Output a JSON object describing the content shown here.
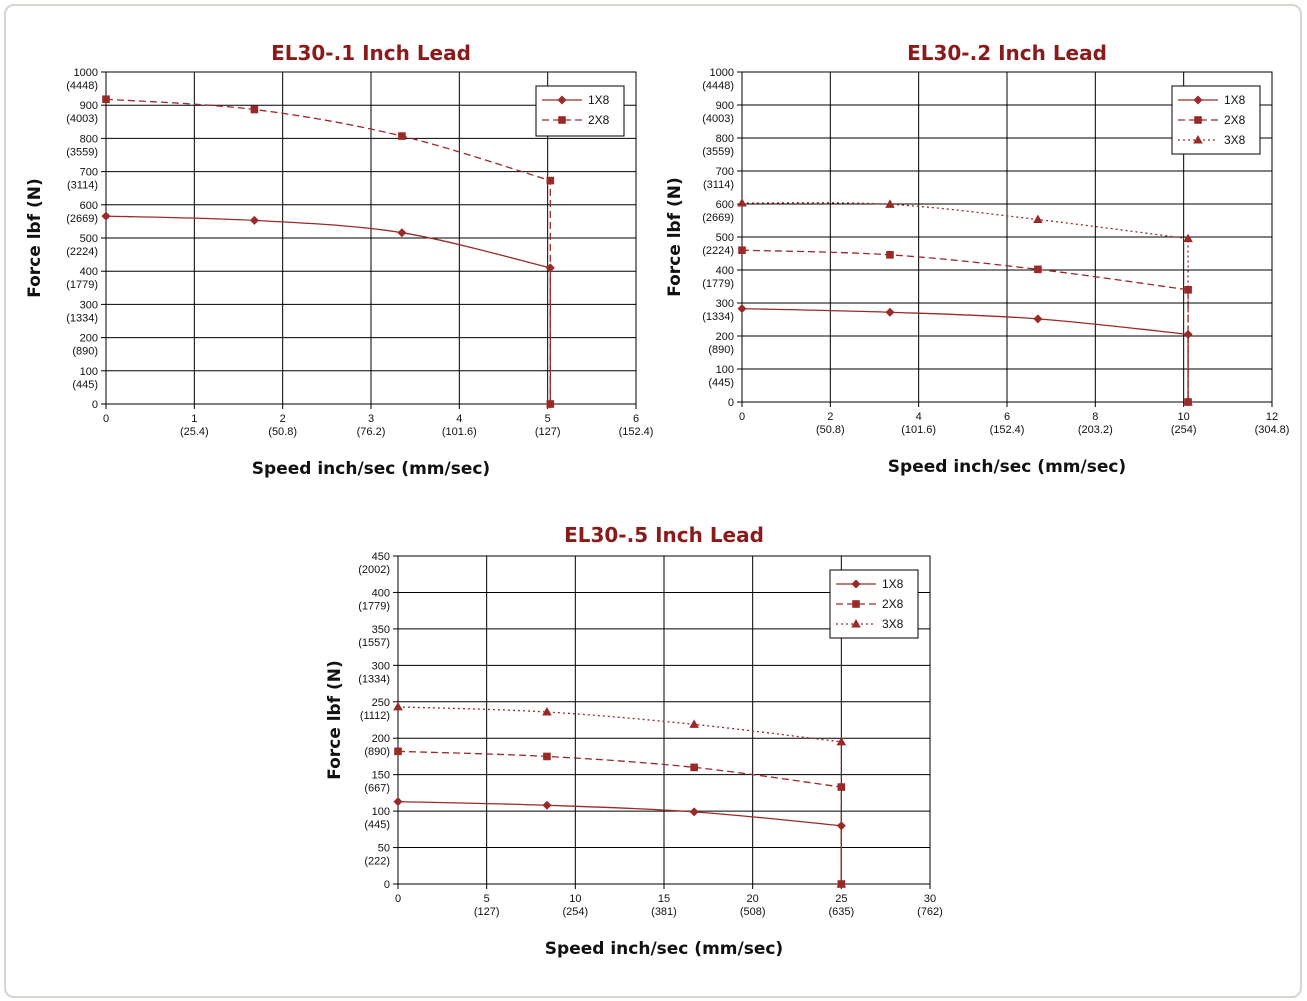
{
  "colors": {
    "series": "#9a2a28",
    "title": "#8b1a1a",
    "grid": "#000000",
    "frame": "#d8d4ce"
  },
  "chart_data": [
    {
      "type": "line",
      "title": "EL30-.1 Inch Lead",
      "xlabel": "Speed inch/sec (mm/sec)",
      "ylabel": "Force lbf (N)",
      "xlim": [
        0,
        6
      ],
      "ylim": [
        0,
        1000
      ],
      "x_ticks": [
        {
          "value": 0,
          "label": "0",
          "sub": ""
        },
        {
          "value": 1,
          "label": "1",
          "sub": "(25.4)"
        },
        {
          "value": 2,
          "label": "2",
          "sub": "(50.8)"
        },
        {
          "value": 3,
          "label": "3",
          "sub": "(76.2)"
        },
        {
          "value": 4,
          "label": "4",
          "sub": "(101.6)"
        },
        {
          "value": 5,
          "label": "5",
          "sub": "(127)"
        },
        {
          "value": 6,
          "label": "6",
          "sub": "(152.4)"
        }
      ],
      "y_ticks": [
        {
          "value": 0,
          "label": "0",
          "sub": ""
        },
        {
          "value": 100,
          "label": "100",
          "sub": "(445)"
        },
        {
          "value": 200,
          "label": "200",
          "sub": "(890)"
        },
        {
          "value": 300,
          "label": "300",
          "sub": "(1334)"
        },
        {
          "value": 400,
          "label": "400",
          "sub": "(1779)"
        },
        {
          "value": 500,
          "label": "500",
          "sub": "(2224)"
        },
        {
          "value": 600,
          "label": "600",
          "sub": "(2669)"
        },
        {
          "value": 700,
          "label": "700",
          "sub": "(3114)"
        },
        {
          "value": 800,
          "label": "800",
          "sub": "(3559)"
        },
        {
          "value": 900,
          "label": "900",
          "sub": "(4003)"
        },
        {
          "value": 1000,
          "label": "1000",
          "sub": "(4448)"
        }
      ],
      "legend": "top-right",
      "grid": true,
      "series": [
        {
          "name": "1X8",
          "marker": "diamond",
          "dash": "solid",
          "points": [
            [
              0,
              566
            ],
            [
              1.68,
              553
            ],
            [
              3.35,
              516
            ],
            [
              5.03,
              410
            ],
            [
              5.03,
              0
            ]
          ]
        },
        {
          "name": "2X8",
          "marker": "square",
          "dash": "dashed",
          "points": [
            [
              0,
              918
            ],
            [
              1.68,
              887
            ],
            [
              3.35,
              807
            ],
            [
              5.03,
              673
            ],
            [
              5.03,
              0
            ]
          ]
        }
      ]
    },
    {
      "type": "line",
      "title": "EL30-.2 Inch Lead",
      "xlabel": "Speed inch/sec (mm/sec)",
      "ylabel": "Force lbf (N)",
      "xlim": [
        0,
        12
      ],
      "ylim": [
        0,
        1000
      ],
      "x_ticks": [
        {
          "value": 0,
          "label": "0",
          "sub": ""
        },
        {
          "value": 2,
          "label": "2",
          "sub": "(50.8)"
        },
        {
          "value": 4,
          "label": "4",
          "sub": "(101.6)"
        },
        {
          "value": 6,
          "label": "6",
          "sub": "(152.4)"
        },
        {
          "value": 8,
          "label": "8",
          "sub": "(203.2)"
        },
        {
          "value": 10,
          "label": "10",
          "sub": "(254)"
        },
        {
          "value": 12,
          "label": "12",
          "sub": "(304.8)"
        }
      ],
      "y_ticks": [
        {
          "value": 0,
          "label": "0",
          "sub": ""
        },
        {
          "value": 100,
          "label": "100",
          "sub": "(445)"
        },
        {
          "value": 200,
          "label": "200",
          "sub": "(890)"
        },
        {
          "value": 300,
          "label": "300",
          "sub": "(1334)"
        },
        {
          "value": 400,
          "label": "400",
          "sub": "(1779)"
        },
        {
          "value": 500,
          "label": "500",
          "sub": "(2224)"
        },
        {
          "value": 600,
          "label": "600",
          "sub": "(2669)"
        },
        {
          "value": 700,
          "label": "700",
          "sub": "(3114)"
        },
        {
          "value": 800,
          "label": "800",
          "sub": "(3559)"
        },
        {
          "value": 900,
          "label": "900",
          "sub": "(4003)"
        },
        {
          "value": 1000,
          "label": "1000",
          "sub": "(4448)"
        }
      ],
      "legend": "top-right",
      "grid": true,
      "series": [
        {
          "name": "1X8",
          "marker": "diamond",
          "dash": "solid",
          "points": [
            [
              0,
              283
            ],
            [
              3.35,
              272
            ],
            [
              6.7,
              252
            ],
            [
              10.1,
              205
            ],
            [
              10.1,
              0
            ]
          ]
        },
        {
          "name": "2X8",
          "marker": "square",
          "dash": "dashed",
          "points": [
            [
              0,
              460
            ],
            [
              3.35,
              446
            ],
            [
              6.7,
              402
            ],
            [
              10.1,
              340
            ],
            [
              10.1,
              0
            ]
          ]
        },
        {
          "name": "3X8",
          "marker": "triangle",
          "dash": "dotted",
          "points": [
            [
              0,
              603
            ],
            [
              3.35,
              599
            ],
            [
              6.7,
              553
            ],
            [
              10.1,
              495
            ],
            [
              10.1,
              0
            ]
          ]
        }
      ]
    },
    {
      "type": "line",
      "title": "EL30-.5 Inch Lead",
      "xlabel": "Speed inch/sec (mm/sec)",
      "ylabel": "Force lbf (N)",
      "xlim": [
        0,
        30
      ],
      "ylim": [
        0,
        450
      ],
      "x_ticks": [
        {
          "value": 0,
          "label": "0",
          "sub": ""
        },
        {
          "value": 5,
          "label": "5",
          "sub": "(127)"
        },
        {
          "value": 10,
          "label": "10",
          "sub": "(254)"
        },
        {
          "value": 15,
          "label": "15",
          "sub": "(381)"
        },
        {
          "value": 20,
          "label": "20",
          "sub": "(508)"
        },
        {
          "value": 25,
          "label": "25",
          "sub": "(635)"
        },
        {
          "value": 30,
          "label": "30",
          "sub": "(762)"
        }
      ],
      "y_ticks": [
        {
          "value": 0,
          "label": "0",
          "sub": ""
        },
        {
          "value": 50,
          "label": "50",
          "sub": "(222)"
        },
        {
          "value": 100,
          "label": "100",
          "sub": "(445)"
        },
        {
          "value": 150,
          "label": "150",
          "sub": "(667)"
        },
        {
          "value": 200,
          "label": "200",
          "sub": "(890)"
        },
        {
          "value": 250,
          "label": "250",
          "sub": "(1112)"
        },
        {
          "value": 300,
          "label": "300",
          "sub": "(1334)"
        },
        {
          "value": 350,
          "label": "350",
          "sub": "(1557)"
        },
        {
          "value": 400,
          "label": "400",
          "sub": "(1779)"
        },
        {
          "value": 450,
          "label": "450",
          "sub": "(2002)"
        }
      ],
      "legend": "top-right",
      "grid": true,
      "series": [
        {
          "name": "1X8",
          "marker": "diamond",
          "dash": "solid",
          "points": [
            [
              0,
              113
            ],
            [
              8.4,
              108
            ],
            [
              16.7,
              99
            ],
            [
              25,
              80
            ],
            [
              25,
              0
            ]
          ]
        },
        {
          "name": "2X8",
          "marker": "square",
          "dash": "dashed",
          "points": [
            [
              0,
              182
            ],
            [
              8.4,
              175
            ],
            [
              16.7,
              160
            ],
            [
              25,
              133
            ],
            [
              25,
              0
            ]
          ]
        },
        {
          "name": "3X8",
          "marker": "triangle",
          "dash": "dotted",
          "points": [
            [
              0,
              243
            ],
            [
              8.4,
              236
            ],
            [
              16.7,
              219
            ],
            [
              25,
              195
            ],
            [
              25,
              0
            ]
          ]
        }
      ]
    }
  ]
}
